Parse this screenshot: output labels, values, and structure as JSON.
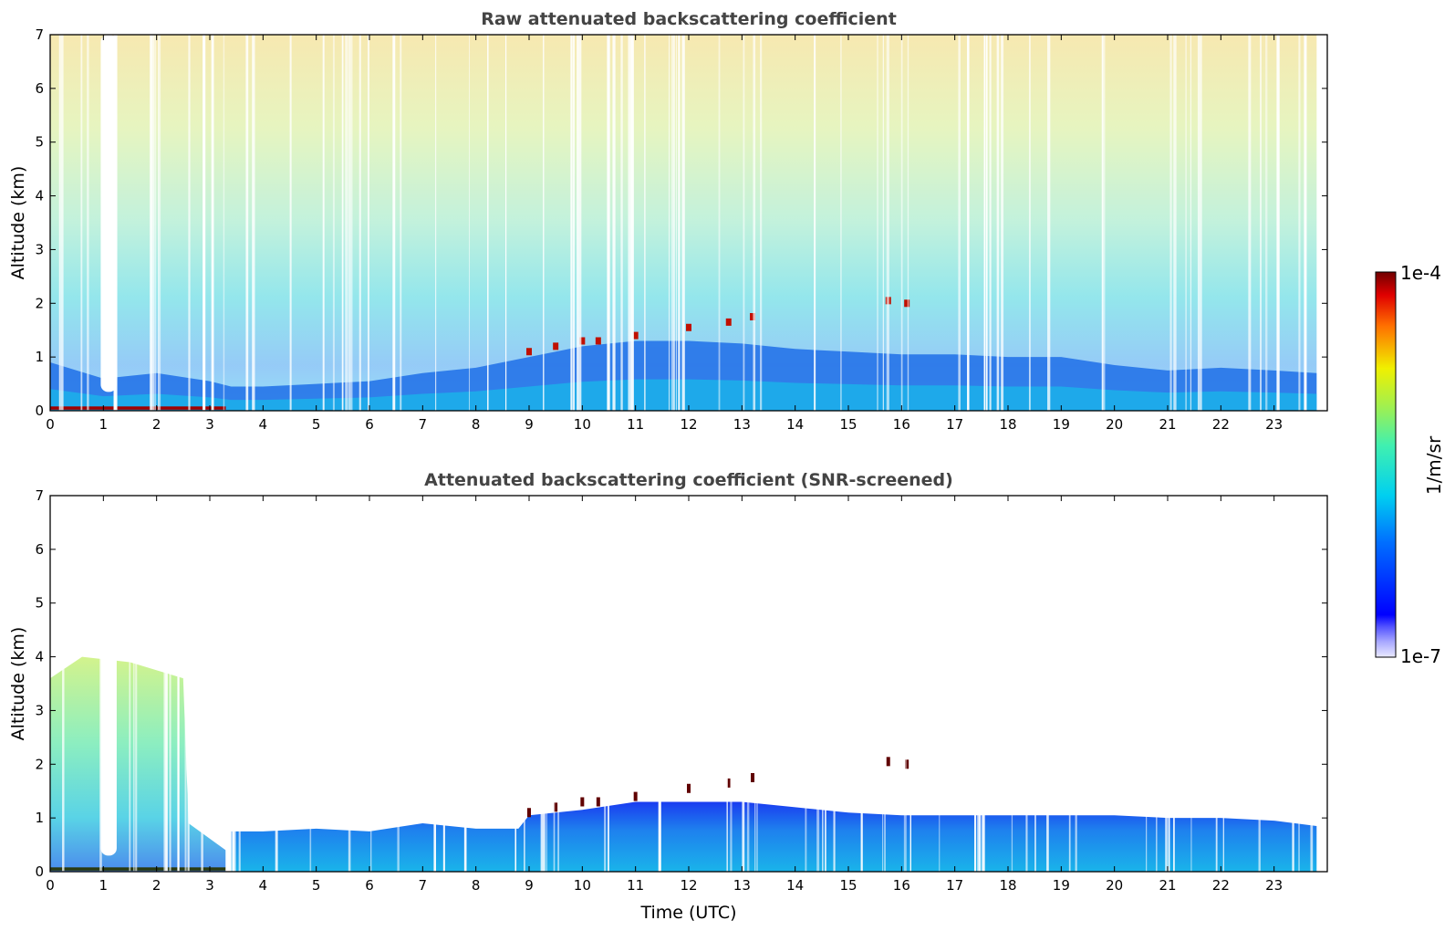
{
  "chart_data": [
    {
      "type": "heatmap",
      "title": "Raw attenuated backscattering coefficient",
      "xlabel": "",
      "ylabel": "Altitude (km)",
      "xlim": [
        0,
        24
      ],
      "ylim": [
        0,
        7
      ],
      "xticks": [
        "0",
        "1",
        "2",
        "3",
        "4",
        "5",
        "6",
        "7",
        "8",
        "9",
        "10",
        "11",
        "12",
        "13",
        "14",
        "15",
        "16",
        "17",
        "18",
        "19",
        "20",
        "21",
        "22",
        "23"
      ],
      "yticks": [
        "0",
        "1",
        "2",
        "3",
        "4",
        "5",
        "6",
        "7"
      ],
      "data_end_time": 23.8,
      "boundary_layer_top_km": [
        [
          0,
          0.9
        ],
        [
          1,
          0.6
        ],
        [
          2,
          0.7
        ],
        [
          3,
          0.55
        ],
        [
          3.4,
          0.45
        ],
        [
          4,
          0.45
        ],
        [
          5,
          0.5
        ],
        [
          6,
          0.55
        ],
        [
          7,
          0.7
        ],
        [
          8,
          0.8
        ],
        [
          9,
          1.0
        ],
        [
          10,
          1.2
        ],
        [
          11,
          1.3
        ],
        [
          12,
          1.3
        ],
        [
          13,
          1.25
        ],
        [
          14,
          1.15
        ],
        [
          15,
          1.1
        ],
        [
          16,
          1.05
        ],
        [
          17,
          1.05
        ],
        [
          18,
          1.0
        ],
        [
          19,
          1.0
        ],
        [
          20,
          0.85
        ],
        [
          21,
          0.75
        ],
        [
          22,
          0.8
        ],
        [
          23,
          0.75
        ],
        [
          23.8,
          0.7
        ]
      ],
      "cloud_features": [
        {
          "time": 9.0,
          "altitude_km": 1.1
        },
        {
          "time": 9.5,
          "altitude_km": 1.2
        },
        {
          "time": 10.0,
          "altitude_km": 1.3
        },
        {
          "time": 10.3,
          "altitude_km": 1.3
        },
        {
          "time": 11.0,
          "altitude_km": 1.4
        },
        {
          "time": 12.0,
          "altitude_km": 1.55
        },
        {
          "time": 12.75,
          "altitude_km": 1.65
        },
        {
          "time": 13.2,
          "altitude_km": 1.75
        },
        {
          "time": 15.75,
          "altitude_km": 2.05
        },
        {
          "time": 16.1,
          "altitude_km": 2.0
        }
      ],
      "surface_layer": {
        "time_range": [
          0,
          3.3
        ],
        "altitude_km": 0.05
      }
    },
    {
      "type": "heatmap",
      "title": "Attenuated backscattering coefficient (SNR-screened)",
      "xlabel": "Time (UTC)",
      "ylabel": "Altitude (km)",
      "xlim": [
        0,
        24
      ],
      "ylim": [
        0,
        7
      ],
      "xticks": [
        "0",
        "1",
        "2",
        "3",
        "4",
        "5",
        "6",
        "7",
        "8",
        "9",
        "10",
        "11",
        "12",
        "13",
        "14",
        "15",
        "16",
        "17",
        "18",
        "19",
        "20",
        "21",
        "22",
        "23"
      ],
      "yticks": [
        "0",
        "1",
        "2",
        "3",
        "4",
        "5",
        "6",
        "7"
      ],
      "data_end_time": 23.8,
      "boundary_layer_top_km": [
        [
          0,
          0.7
        ],
        [
          3.4,
          0.75
        ],
        [
          4,
          0.75
        ],
        [
          5,
          0.8
        ],
        [
          6,
          0.75
        ],
        [
          7,
          0.9
        ],
        [
          8,
          0.8
        ],
        [
          8.8,
          0.8
        ],
        [
          9,
          1.05
        ],
        [
          10,
          1.15
        ],
        [
          11,
          1.3
        ],
        [
          12,
          1.3
        ],
        [
          13,
          1.3
        ],
        [
          14,
          1.2
        ],
        [
          15,
          1.1
        ],
        [
          16,
          1.05
        ],
        [
          17,
          1.05
        ],
        [
          18,
          1.05
        ],
        [
          19,
          1.05
        ],
        [
          20,
          1.05
        ],
        [
          21,
          1.0
        ],
        [
          22,
          1.0
        ],
        [
          23,
          0.95
        ],
        [
          23.8,
          0.85
        ]
      ],
      "morning_aerosol_top_km": 4.0
    }
  ],
  "colorbar": {
    "label": "1/m/sr",
    "max_label": "1e-4",
    "min_label": "1e-7",
    "colormap": "jet",
    "scale": "log",
    "range": [
      1e-07,
      0.0001
    ]
  }
}
